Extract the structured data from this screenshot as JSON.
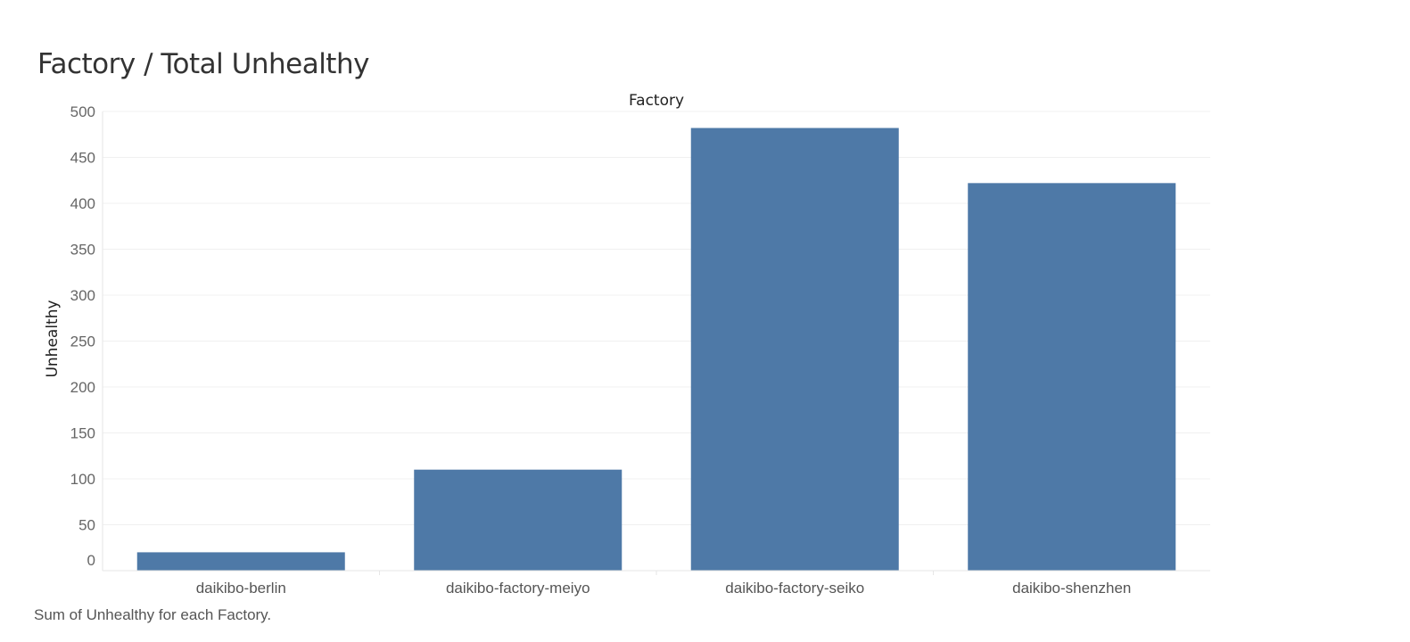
{
  "page": {
    "title": "Factory / Total Unhealthy",
    "caption": "Sum of Unhealthy for each Factory."
  },
  "colors": {
    "bar": "#4e79a7",
    "grid": "#f0f0f0",
    "axis": "#e6e6e6"
  },
  "chart_data": {
    "type": "bar",
    "title": "Factory / Total Unhealthy",
    "xlabel": "Factory",
    "ylabel": "Unhealthy",
    "categories": [
      "daikibo-berlin",
      "daikibo-factory-meiyo",
      "daikibo-factory-seiko",
      "daikibo-shenzhen"
    ],
    "values": [
      20,
      110,
      482,
      422
    ],
    "ylim": [
      0,
      500
    ],
    "yticks": [
      0,
      50,
      100,
      150,
      200,
      250,
      300,
      350,
      400,
      450,
      500
    ],
    "grid": true,
    "legend": "none"
  }
}
